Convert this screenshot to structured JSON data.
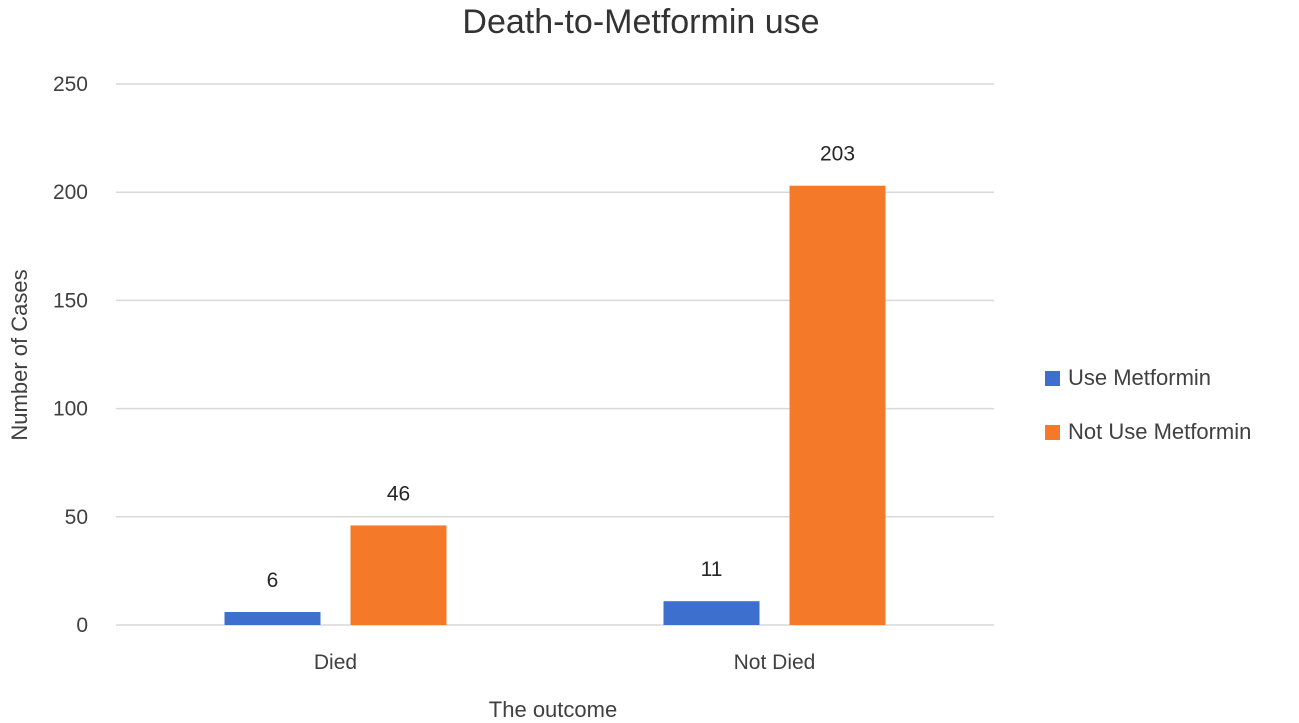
{
  "chart_data": {
    "type": "bar",
    "title": "Death-to-Metformin use",
    "xlabel": "The outcome",
    "ylabel": "Number of Cases",
    "categories": [
      "Died",
      "Not Died"
    ],
    "series": [
      {
        "name": "Use Metformin",
        "values": [
          6,
          11
        ],
        "labels": [
          "6",
          "11"
        ],
        "color": "#3d6fcf"
      },
      {
        "name": "Not Use Metformin",
        "values": [
          46,
          203
        ],
        "labels": [
          "46",
          "203"
        ],
        "color": "#f47a2a"
      }
    ],
    "ylim": [
      0,
      250
    ],
    "yticks": [
      0,
      50,
      100,
      150,
      200,
      250
    ],
    "ytick_labels": [
      "0",
      "50",
      "100",
      "150",
      "200",
      "250"
    ],
    "grid": true,
    "gridline_color": "#d9d9d9",
    "legend_position": "right"
  }
}
